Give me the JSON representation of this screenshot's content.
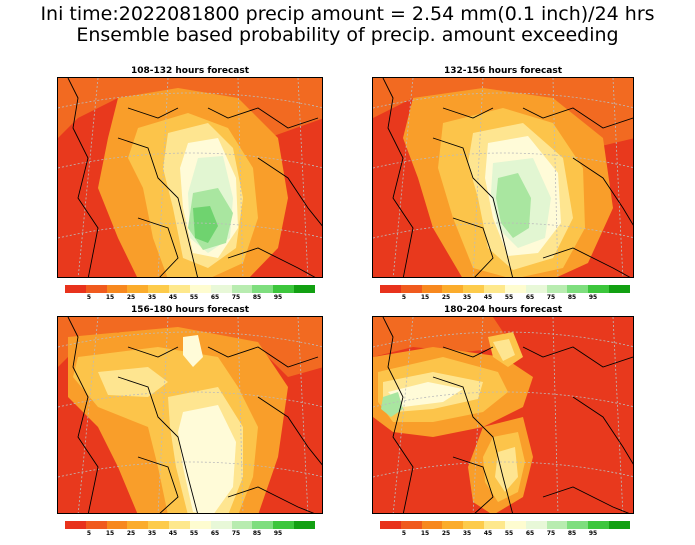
{
  "header": {
    "line1": "Ini time:2022081800 precip amount = 2.54 mm(0.1 inch)/24 hrs",
    "line2": "Ensemble based probability of precip. amount exceeding"
  },
  "panels": [
    {
      "title": "108-132 hours forecast"
    },
    {
      "title": "132-156 hours forecast"
    },
    {
      "title": "156-180 hours forecast"
    },
    {
      "title": "180-204 hours forecast"
    }
  ],
  "colorbar": {
    "labels": [
      "5",
      "15",
      "25",
      "35",
      "45",
      "55",
      "65",
      "75",
      "85",
      "95"
    ],
    "colors": [
      "#e8321c",
      "#f05a1e",
      "#f7881f",
      "#fbac2c",
      "#fdcb4b",
      "#fee88c",
      "#fefcd0",
      "#e8f8d8",
      "#b8ecb0",
      "#7ede7e",
      "#3cc63c",
      "#12a012"
    ]
  },
  "colors": {
    "red": "#e8391d",
    "orange_red": "#f26a21",
    "orange": "#f99e2a",
    "light_orange": "#fcc44a",
    "yellow": "#fee590",
    "pale": "#fffbd8",
    "pale_green": "#e2f6d2",
    "light_green": "#a9e6a0",
    "green": "#6fd36f"
  }
}
